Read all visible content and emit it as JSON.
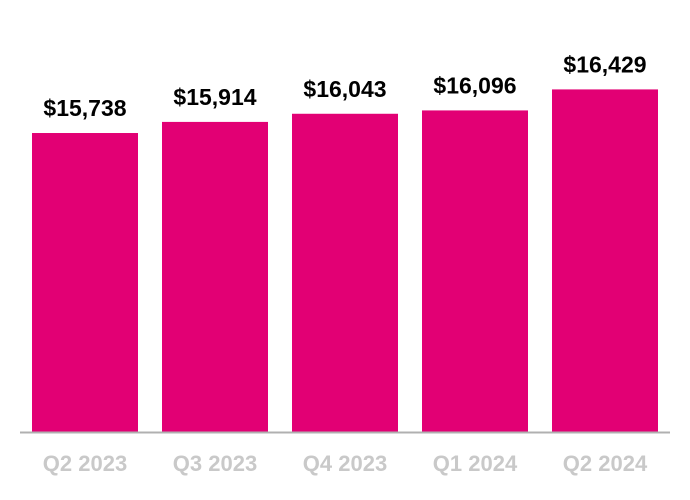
{
  "chart_data": {
    "type": "bar",
    "categories": [
      "Q2 2023",
      "Q3 2023",
      "Q4 2023",
      "Q1 2024",
      "Q2 2024"
    ],
    "values": [
      15738,
      15914,
      16043,
      16096,
      16429
    ],
    "value_labels": [
      "$15,738",
      "$15,914",
      "$16,043",
      "$16,096",
      "$16,429"
    ],
    "color": "#e20074",
    "ylim": [
      11000,
      16800
    ]
  }
}
